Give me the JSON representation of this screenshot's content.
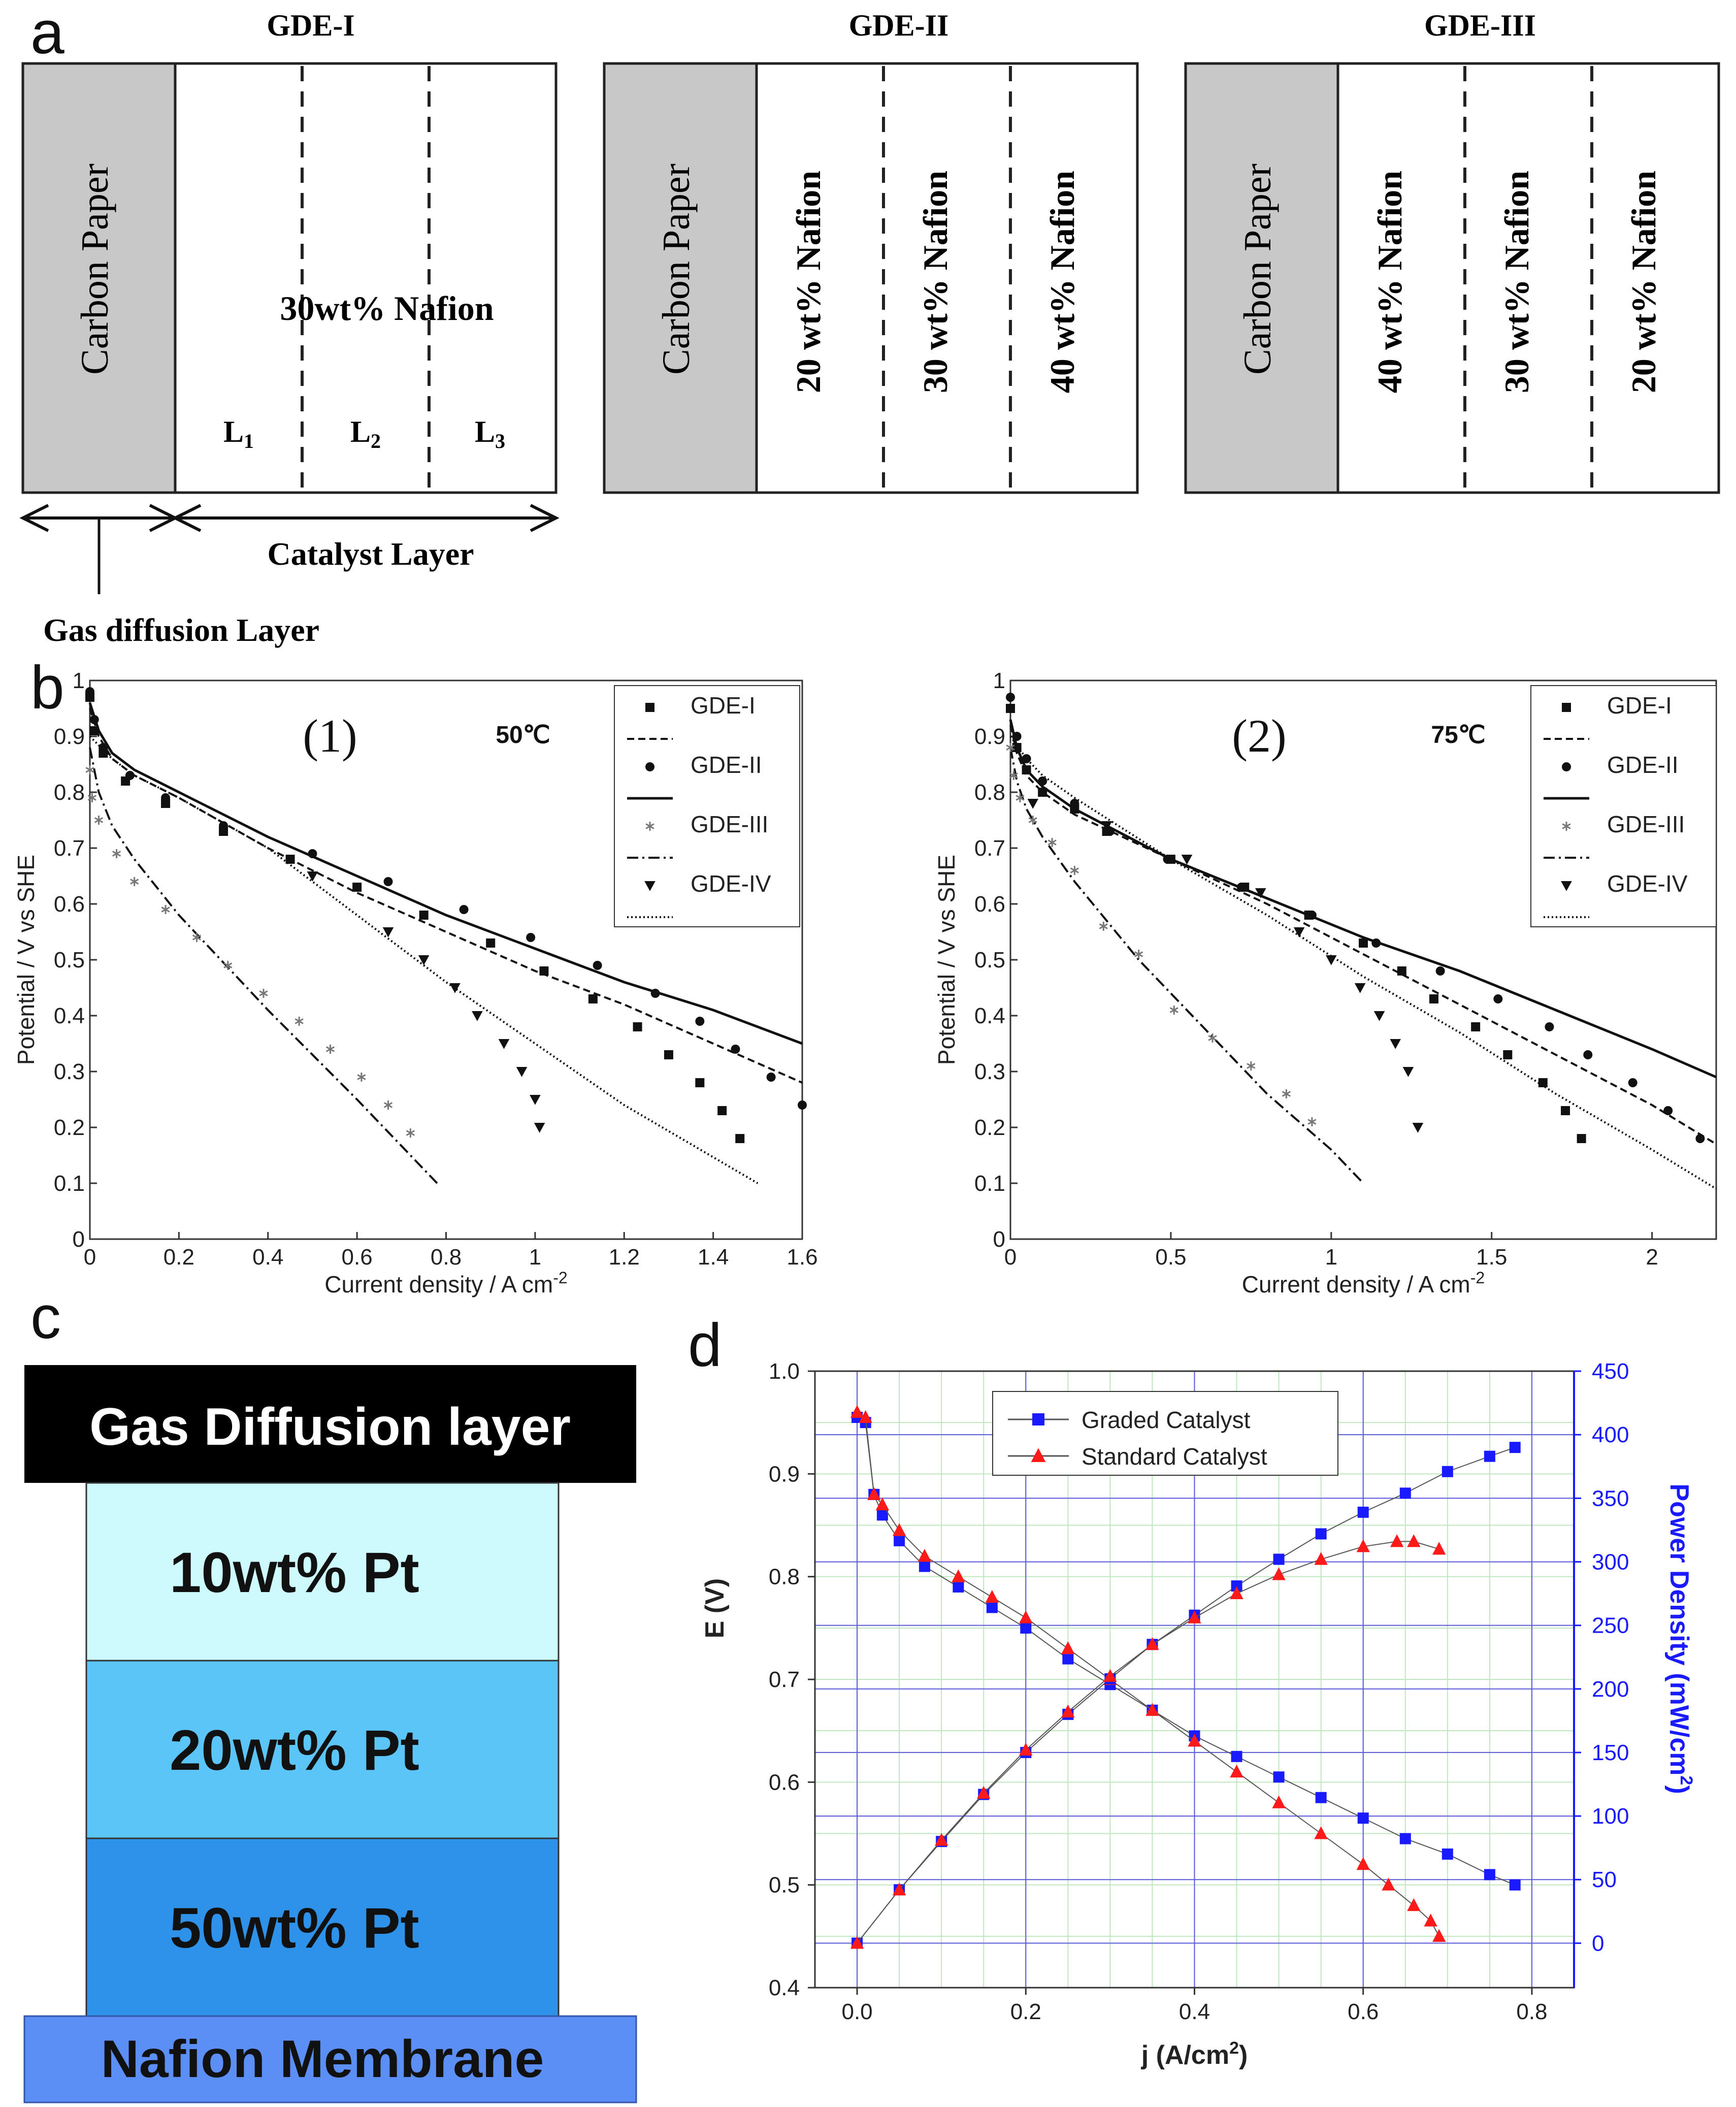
{
  "panel_labels": {
    "a": "a",
    "b": "b",
    "c": "c",
    "d": "d"
  },
  "panel_a": {
    "gdl_label": "Carbon Paper",
    "catalyst_layer_label": "Catalyst Layer",
    "gas_diffusion_layer_label": "Gas diffusion Layer",
    "gde1": {
      "title": "GDE-I",
      "center_label": "30wt% Nafion",
      "layers": [
        "L",
        "L",
        "L"
      ],
      "layer_subs": [
        "1",
        "2",
        "3"
      ]
    },
    "gde2": {
      "title": "GDE-II",
      "layers": [
        "20 wt% Nafion",
        "30 wt% Nafion",
        "40 wt% Nafion"
      ]
    },
    "gde3": {
      "title": "GDE-III",
      "layers": [
        "40 wt% Nafion",
        "30 wt% Nafion",
        "20 wt% Nafion"
      ]
    }
  },
  "panel_c": {
    "top": "Gas Diffusion layer",
    "layers": [
      "10wt% Pt",
      "20wt% Pt",
      "50wt% Pt"
    ],
    "bottom": "Nafion Membrane",
    "colors": [
      "#000000",
      "#ccfafd",
      "#5bc5f7",
      "#2e92eb",
      "#5b8ff5"
    ]
  },
  "chart_data": [
    {
      "id": "b1",
      "type": "scatter",
      "title": "(1)",
      "annotation": "50℃",
      "xlabel": "Current density / A cm",
      "xlabel_sup": "-2",
      "ylabel": "Potential / V vs SHE",
      "xlim": [
        0,
        1.6
      ],
      "ylim": [
        0,
        1
      ],
      "xticks": [
        0,
        0.2,
        0.4,
        0.6,
        0.8,
        1,
        1.2,
        1.4,
        1.6
      ],
      "xtick_labels": [
        "0",
        "0.2",
        "0.4",
        "0.6",
        "0.8",
        "1",
        "1.2",
        "1.4",
        "1.6"
      ],
      "yticks": [
        0,
        0.1,
        0.2,
        0.3,
        0.4,
        0.5,
        0.6,
        0.7,
        0.8,
        0.9,
        1
      ],
      "ytick_labels": [
        "0",
        "0.1",
        "0.2",
        "0.3",
        "0.4",
        "0.5",
        "0.6",
        "0.7",
        "0.8",
        "0.9",
        "1"
      ],
      "legend": [
        "GDE-I",
        "GDE-II",
        "GDE-III",
        "GDE-IV"
      ],
      "series": [
        {
          "name": "GDE-I",
          "marker": "square",
          "x": [
            0,
            0.01,
            0.03,
            0.08,
            0.17,
            0.3,
            0.45,
            0.6,
            0.75,
            0.9,
            1.02,
            1.13,
            1.23,
            1.3,
            1.37,
            1.42,
            1.46
          ],
          "y": [
            0.97,
            0.91,
            0.87,
            0.82,
            0.78,
            0.73,
            0.68,
            0.63,
            0.58,
            0.53,
            0.48,
            0.43,
            0.38,
            0.33,
            0.28,
            0.23,
            0.18
          ]
        },
        {
          "name": "GDE-II",
          "marker": "circle",
          "x": [
            0,
            0.01,
            0.03,
            0.09,
            0.17,
            0.3,
            0.5,
            0.67,
            0.84,
            0.99,
            1.14,
            1.27,
            1.37,
            1.45,
            1.53,
            1.6
          ],
          "y": [
            0.98,
            0.93,
            0.88,
            0.83,
            0.79,
            0.74,
            0.69,
            0.64,
            0.59,
            0.54,
            0.49,
            0.44,
            0.39,
            0.34,
            0.29,
            0.24
          ]
        },
        {
          "name": "GDE-III",
          "marker": "asterisk",
          "x": [
            0,
            0.005,
            0.02,
            0.06,
            0.1,
            0.17,
            0.24,
            0.31,
            0.39,
            0.47,
            0.54,
            0.61,
            0.67,
            0.72
          ],
          "y": [
            0.84,
            0.79,
            0.75,
            0.69,
            0.64,
            0.59,
            0.54,
            0.49,
            0.44,
            0.39,
            0.34,
            0.29,
            0.24,
            0.19
          ]
        },
        {
          "name": "GDE-IV",
          "marker": "triangle-down",
          "x": [
            0.5,
            0.67,
            0.75,
            0.82,
            0.87,
            0.93,
            0.97,
            1.0,
            1.01
          ],
          "y": [
            0.65,
            0.55,
            0.5,
            0.45,
            0.4,
            0.35,
            0.3,
            0.25,
            0.2
          ]
        }
      ],
      "fits": [
        {
          "name": "GDE-I fit",
          "style": "dashed",
          "x": [
            0,
            0.02,
            0.05,
            0.1,
            0.2,
            0.4,
            0.6,
            0.8,
            1.0,
            1.2,
            1.4,
            1.6
          ],
          "y": [
            0.95,
            0.9,
            0.86,
            0.83,
            0.79,
            0.7,
            0.62,
            0.55,
            0.48,
            0.42,
            0.35,
            0.28
          ]
        },
        {
          "name": "GDE-II fit",
          "style": "solid",
          "x": [
            0,
            0.02,
            0.05,
            0.1,
            0.2,
            0.4,
            0.6,
            0.8,
            1.0,
            1.2,
            1.4,
            1.6
          ],
          "y": [
            0.96,
            0.91,
            0.87,
            0.84,
            0.8,
            0.72,
            0.65,
            0.58,
            0.52,
            0.46,
            0.41,
            0.35
          ]
        },
        {
          "name": "GDE-III fit",
          "style": "dashdot",
          "x": [
            0,
            0.02,
            0.05,
            0.1,
            0.2,
            0.4,
            0.6,
            0.78
          ],
          "y": [
            0.88,
            0.8,
            0.74,
            0.68,
            0.58,
            0.41,
            0.25,
            0.1
          ]
        },
        {
          "name": "GDE-IV fit",
          "style": "dotted",
          "x": [
            0,
            0.05,
            0.1,
            0.2,
            0.4,
            0.6,
            0.8,
            1.0,
            1.2,
            1.5
          ],
          "y": [
            0.9,
            0.86,
            0.83,
            0.79,
            0.7,
            0.58,
            0.46,
            0.35,
            0.24,
            0.1
          ]
        }
      ]
    },
    {
      "id": "b2",
      "type": "scatter",
      "title": "(2)",
      "annotation": "75℃",
      "xlabel": "Current density / A cm",
      "xlabel_sup": "-2",
      "ylabel": "Potential / V vs SHE",
      "xlim": [
        0,
        2.2
      ],
      "ylim": [
        0,
        1
      ],
      "xticks": [
        0,
        0.5,
        1,
        1.5,
        2
      ],
      "xtick_labels": [
        "0",
        "0.5",
        "1",
        "1.5",
        "2"
      ],
      "yticks": [
        0,
        0.1,
        0.2,
        0.3,
        0.4,
        0.5,
        0.6,
        0.7,
        0.8,
        0.9,
        1
      ],
      "ytick_labels": [
        "0",
        "0.1",
        "0.2",
        "0.3",
        "0.4",
        "0.5",
        "0.6",
        "0.7",
        "0.8",
        "0.9",
        "1"
      ],
      "legend": [
        "GDE-I",
        "GDE-II",
        "GDE-III",
        "GDE-IV"
      ],
      "series": [
        {
          "name": "GDE-I",
          "marker": "square",
          "x": [
            0,
            0.02,
            0.05,
            0.1,
            0.2,
            0.3,
            0.5,
            0.73,
            0.93,
            1.1,
            1.22,
            1.32,
            1.45,
            1.55,
            1.66,
            1.73,
            1.78
          ],
          "y": [
            0.95,
            0.88,
            0.84,
            0.8,
            0.77,
            0.73,
            0.68,
            0.63,
            0.58,
            0.53,
            0.48,
            0.43,
            0.38,
            0.33,
            0.28,
            0.23,
            0.18
          ]
        },
        {
          "name": "GDE-II",
          "marker": "circle",
          "x": [
            0,
            0.02,
            0.05,
            0.1,
            0.2,
            0.31,
            0.49,
            0.72,
            0.94,
            1.14,
            1.34,
            1.52,
            1.68,
            1.8,
            1.94,
            2.05,
            2.15
          ],
          "y": [
            0.97,
            0.9,
            0.86,
            0.82,
            0.78,
            0.73,
            0.68,
            0.63,
            0.58,
            0.53,
            0.48,
            0.43,
            0.38,
            0.33,
            0.28,
            0.23,
            0.18
          ]
        },
        {
          "name": "GDE-III",
          "marker": "asterisk",
          "x": [
            0,
            0.01,
            0.03,
            0.07,
            0.13,
            0.2,
            0.29,
            0.4,
            0.51,
            0.63,
            0.75,
            0.86,
            0.94
          ],
          "y": [
            0.88,
            0.83,
            0.79,
            0.75,
            0.71,
            0.66,
            0.56,
            0.51,
            0.41,
            0.36,
            0.31,
            0.26,
            0.21
          ]
        },
        {
          "name": "GDE-IV",
          "marker": "triangle-down",
          "x": [
            0.07,
            0.3,
            0.55,
            0.78,
            0.9,
            1.0,
            1.09,
            1.15,
            1.2,
            1.24,
            1.27
          ],
          "y": [
            0.78,
            0.74,
            0.68,
            0.62,
            0.55,
            0.5,
            0.45,
            0.4,
            0.35,
            0.3,
            0.2
          ]
        }
      ],
      "fits": [
        {
          "name": "GDE-I fit",
          "style": "dashed",
          "x": [
            0,
            0.02,
            0.05,
            0.1,
            0.2,
            0.5,
            0.8,
            1.1,
            1.4,
            1.7,
            2.0,
            2.2
          ],
          "y": [
            0.92,
            0.87,
            0.83,
            0.8,
            0.76,
            0.68,
            0.6,
            0.51,
            0.42,
            0.33,
            0.24,
            0.17
          ]
        },
        {
          "name": "GDE-II fit",
          "style": "solid",
          "x": [
            0,
            0.02,
            0.05,
            0.1,
            0.2,
            0.5,
            0.8,
            1.1,
            1.4,
            1.7,
            2.0,
            2.2
          ],
          "y": [
            0.93,
            0.88,
            0.84,
            0.81,
            0.77,
            0.68,
            0.61,
            0.54,
            0.48,
            0.41,
            0.34,
            0.29
          ]
        },
        {
          "name": "GDE-III fit",
          "style": "dashdot",
          "x": [
            0,
            0.02,
            0.05,
            0.1,
            0.2,
            0.4,
            0.6,
            0.8,
            1.0,
            1.1
          ],
          "y": [
            0.88,
            0.82,
            0.77,
            0.72,
            0.64,
            0.5,
            0.38,
            0.26,
            0.16,
            0.1
          ]
        },
        {
          "name": "GDE-IV fit",
          "style": "dotted",
          "x": [
            0,
            0.05,
            0.1,
            0.2,
            0.5,
            0.8,
            1.1,
            1.4,
            1.7,
            2.0,
            2.2
          ],
          "y": [
            0.9,
            0.86,
            0.83,
            0.79,
            0.68,
            0.58,
            0.47,
            0.37,
            0.26,
            0.16,
            0.09
          ]
        }
      ]
    },
    {
      "id": "d",
      "type": "scatter",
      "title": "",
      "xlabel": "j (A/cm",
      "xlabel_sup": "2",
      "xlabel_end": ")",
      "ylabel": "E (V)",
      "y2label": "Power Density (mW/cm",
      "y2label_sup": "2",
      "y2label_end": ")",
      "xlim": [
        -0.05,
        0.85
      ],
      "ylim": [
        0.4,
        1.0
      ],
      "y2lim": [
        -35,
        450
      ],
      "xticks": [
        0,
        0.2,
        0.4,
        0.6,
        0.8
      ],
      "xtick_labels": [
        "0.0",
        "0.2",
        "0.4",
        "0.6",
        "0.8"
      ],
      "yticks": [
        0.4,
        0.5,
        0.6,
        0.7,
        0.8,
        0.9,
        1.0
      ],
      "ytick_labels": [
        "0.4",
        "0.5",
        "0.6",
        "0.7",
        "0.8",
        "0.9",
        "1.0"
      ],
      "y2ticks": [
        0,
        50,
        100,
        150,
        200,
        250,
        300,
        350,
        400,
        450
      ],
      "y2tick_labels": [
        "0",
        "50",
        "100",
        "150",
        "200",
        "250",
        "300",
        "350",
        "400",
        "450"
      ],
      "legend": [
        "Graded Catalyst",
        "Standard Catalyst"
      ],
      "series": [
        {
          "name": "Graded Catalyst",
          "quantity": "E",
          "axis": "left",
          "color": "#1a1aff",
          "marker": "square",
          "x": [
            0,
            0.01,
            0.02,
            0.03,
            0.05,
            0.08,
            0.12,
            0.16,
            0.2,
            0.25,
            0.3,
            0.35,
            0.4,
            0.45,
            0.5,
            0.55,
            0.6,
            0.65,
            0.7,
            0.75,
            0.78
          ],
          "y": [
            0.955,
            0.95,
            0.88,
            0.86,
            0.835,
            0.81,
            0.79,
            0.77,
            0.75,
            0.72,
            0.695,
            0.67,
            0.645,
            0.625,
            0.605,
            0.585,
            0.565,
            0.545,
            0.53,
            0.51,
            0.5
          ]
        },
        {
          "name": "Standard Catalyst",
          "quantity": "E",
          "axis": "left",
          "color": "#ff1a1a",
          "marker": "triangle",
          "x": [
            0,
            0.01,
            0.02,
            0.03,
            0.05,
            0.08,
            0.12,
            0.16,
            0.2,
            0.25,
            0.3,
            0.35,
            0.4,
            0.45,
            0.5,
            0.55,
            0.6,
            0.63,
            0.66,
            0.68,
            0.69
          ],
          "y": [
            0.96,
            0.955,
            0.88,
            0.87,
            0.845,
            0.82,
            0.8,
            0.78,
            0.76,
            0.73,
            0.7,
            0.67,
            0.64,
            0.61,
            0.58,
            0.55,
            0.52,
            0.5,
            0.48,
            0.465,
            0.45
          ]
        },
        {
          "name": "Graded Catalyst",
          "quantity": "Power",
          "axis": "right",
          "color": "#1a1aff",
          "marker": "square",
          "x": [
            0,
            0.05,
            0.1,
            0.15,
            0.2,
            0.25,
            0.3,
            0.35,
            0.4,
            0.45,
            0.5,
            0.55,
            0.6,
            0.65,
            0.7,
            0.75,
            0.78
          ],
          "y": [
            0,
            42,
            80,
            117,
            150,
            180,
            208,
            235,
            258,
            281,
            302,
            322,
            339,
            354,
            371,
            383,
            390
          ]
        },
        {
          "name": "Standard Catalyst",
          "quantity": "Power",
          "axis": "right",
          "color": "#ff1a1a",
          "marker": "triangle",
          "x": [
            0,
            0.05,
            0.1,
            0.15,
            0.2,
            0.25,
            0.3,
            0.35,
            0.4,
            0.45,
            0.5,
            0.55,
            0.6,
            0.64,
            0.66,
            0.69
          ],
          "y": [
            0,
            42,
            81,
            118,
            152,
            182,
            210,
            235,
            256,
            275,
            290,
            302,
            312,
            316,
            316,
            310
          ]
        }
      ]
    }
  ]
}
